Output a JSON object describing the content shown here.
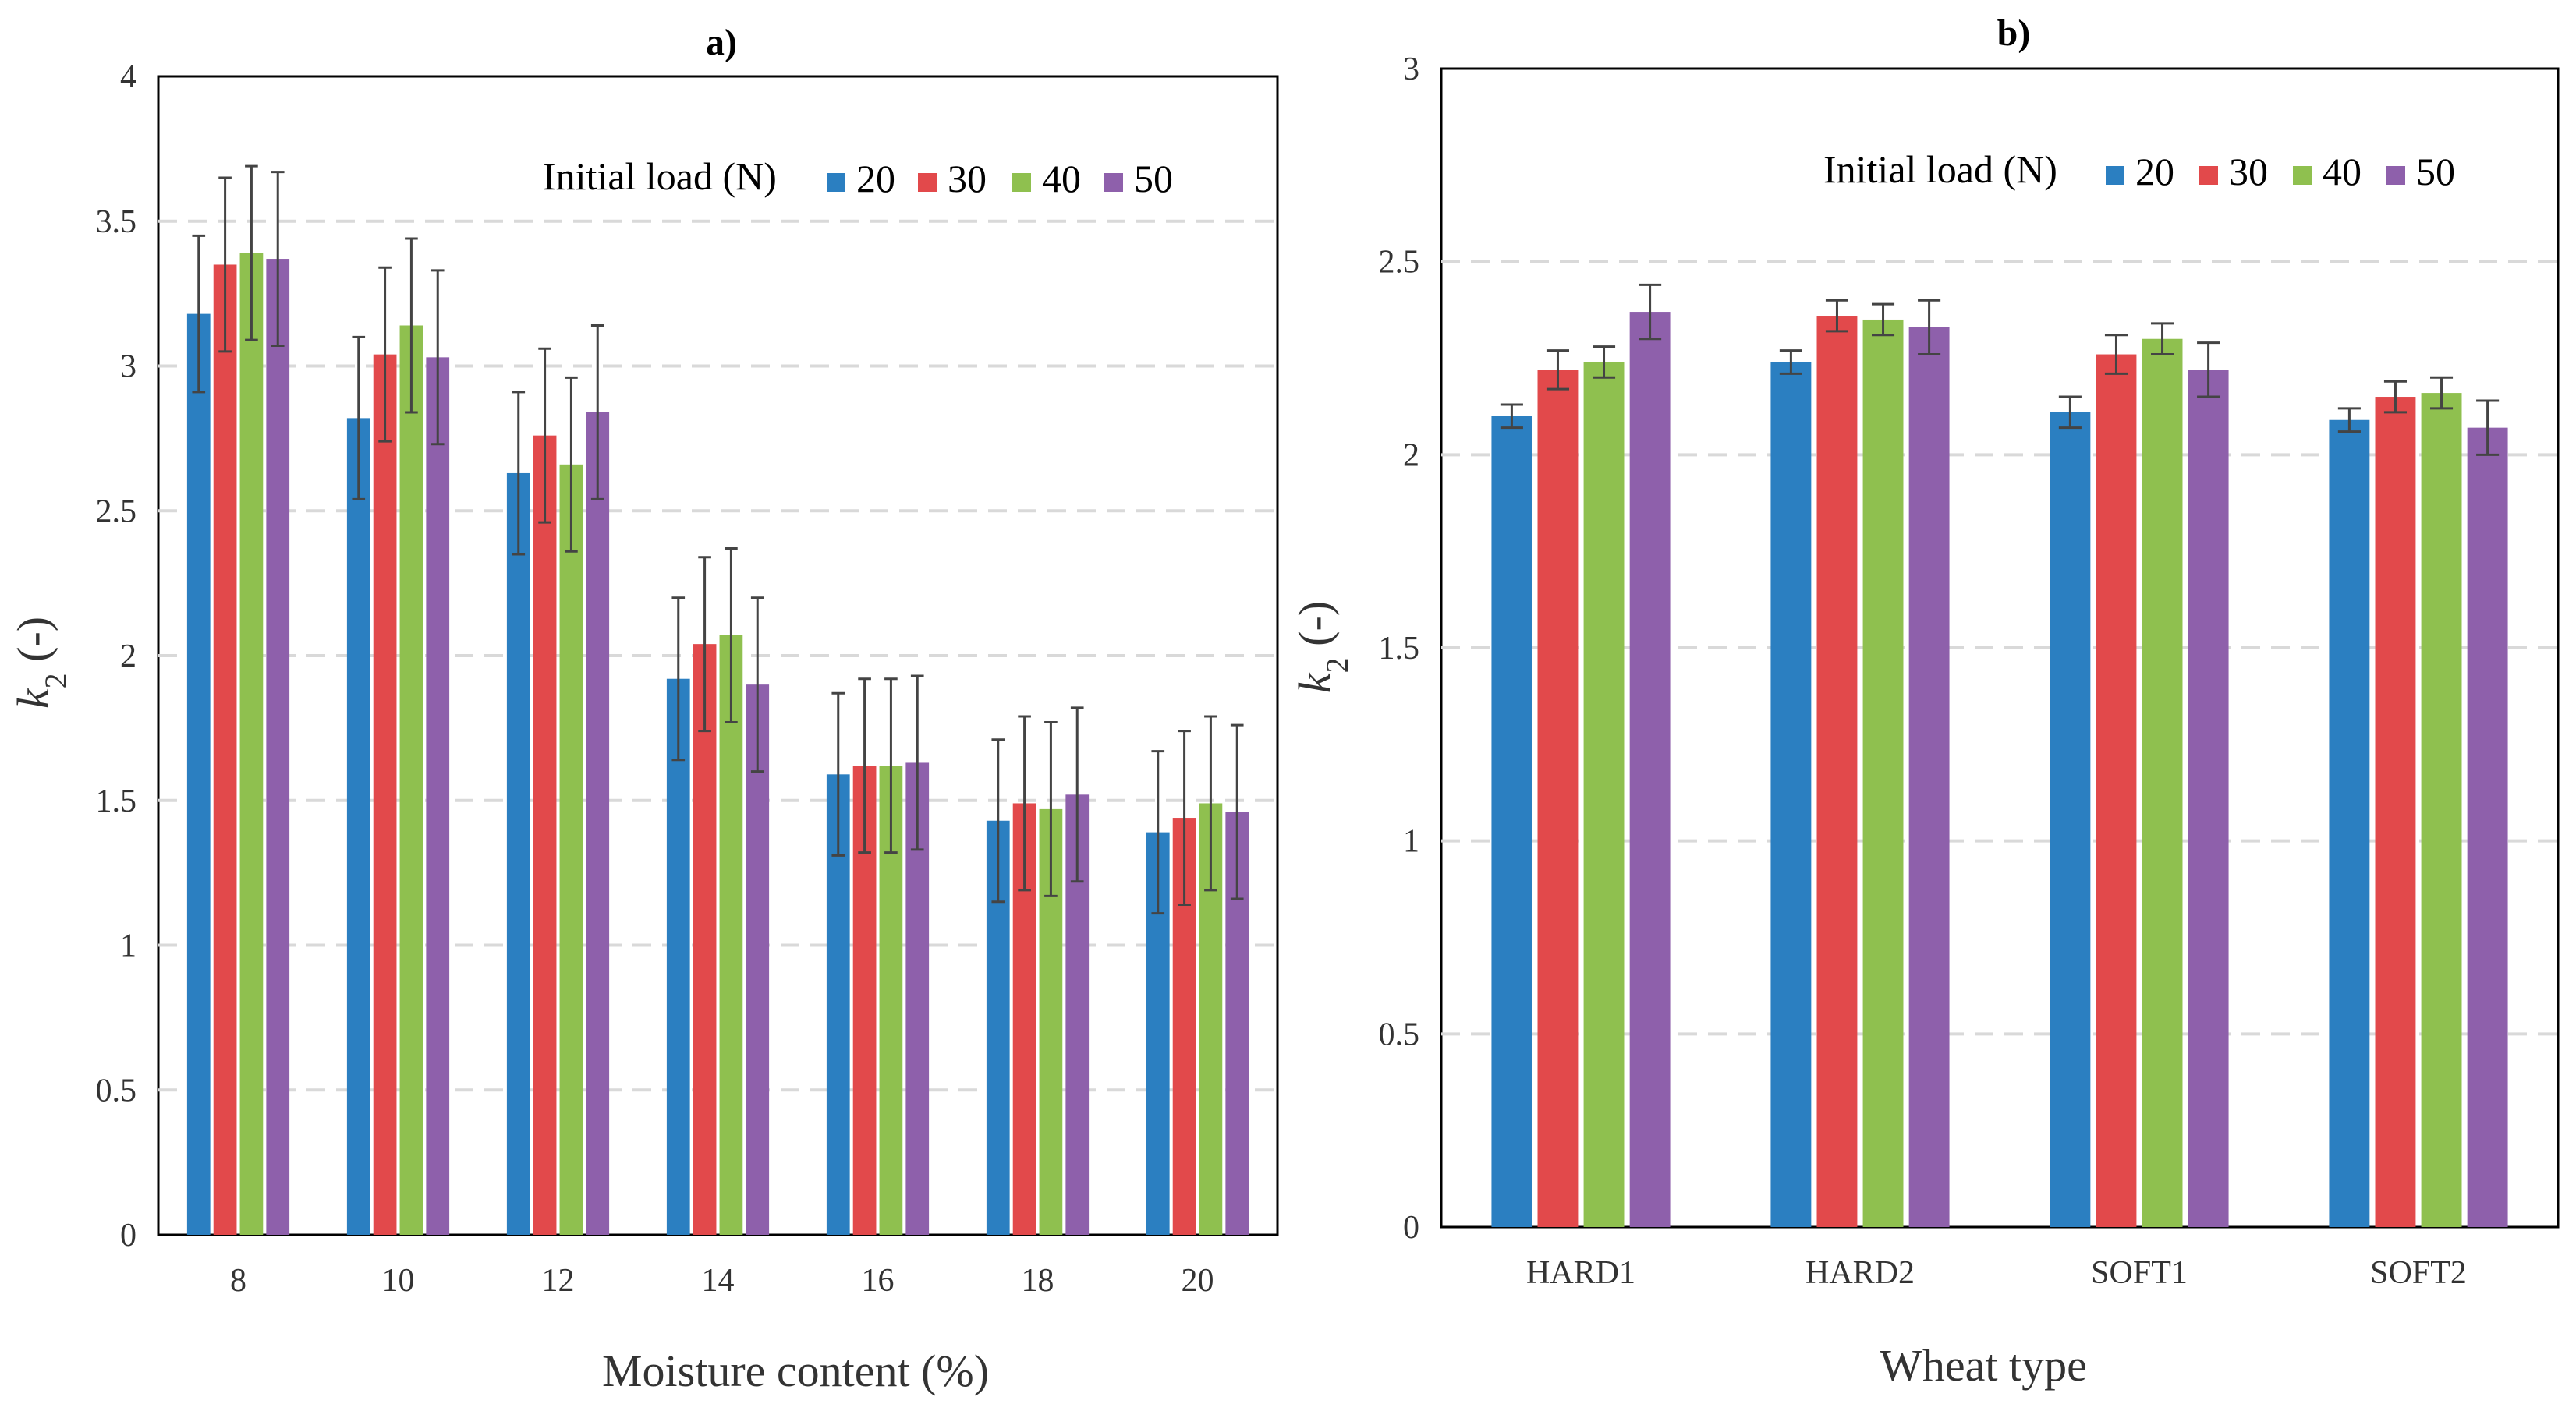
{
  "chart_data": [
    {
      "type": "bar",
      "title": "a)",
      "xlabel": "Moisture content (%)",
      "ylabel": "k2 (-)",
      "ylim": [
        0,
        4
      ],
      "yticks": [
        0,
        0.5,
        1,
        1.5,
        2,
        2.5,
        3,
        3.5,
        4
      ],
      "ytick_labels": [
        "0",
        "0.5",
        "1",
        "1.5",
        "2",
        "2.5",
        "3",
        "3.5",
        "4"
      ],
      "grid": "horizontal dashed",
      "legend_title": "Initial load (N)",
      "legend_position": "top-right",
      "categories": [
        "8",
        "10",
        "12",
        "14",
        "16",
        "18",
        "20"
      ],
      "series": [
        {
          "name": "20",
          "color": "#2b7fc1",
          "values": [
            3.18,
            2.82,
            2.63,
            1.92,
            1.59,
            1.43,
            1.39
          ],
          "errors": [
            0.27,
            0.28,
            0.28,
            0.28,
            0.28,
            0.28,
            0.28
          ]
        },
        {
          "name": "30",
          "color": "#e2494b",
          "values": [
            3.35,
            3.04,
            2.76,
            2.04,
            1.62,
            1.49,
            1.44
          ],
          "errors": [
            0.3,
            0.3,
            0.3,
            0.3,
            0.3,
            0.3,
            0.3
          ]
        },
        {
          "name": "40",
          "color": "#8fc04f",
          "values": [
            3.39,
            3.14,
            2.66,
            2.07,
            1.62,
            1.47,
            1.49
          ],
          "errors": [
            0.3,
            0.3,
            0.3,
            0.3,
            0.3,
            0.3,
            0.3
          ]
        },
        {
          "name": "50",
          "color": "#8e60ab",
          "values": [
            3.37,
            3.03,
            2.84,
            1.9,
            1.63,
            1.52,
            1.46
          ],
          "errors": [
            0.3,
            0.3,
            0.3,
            0.3,
            0.3,
            0.3,
            0.3
          ]
        }
      ]
    },
    {
      "type": "bar",
      "title": "b)",
      "xlabel": "Wheat type",
      "ylabel": "k2 (-)",
      "ylim": [
        0,
        3
      ],
      "yticks": [
        0,
        0.5,
        1,
        1.5,
        2,
        2.5,
        3
      ],
      "ytick_labels": [
        "0",
        "0.5",
        "1",
        "1.5",
        "2",
        "2.5",
        "3"
      ],
      "grid": "horizontal dashed",
      "legend_title": "Initial load (N)",
      "legend_position": "top-right",
      "categories": [
        "HARD1",
        "HARD2",
        "SOFT1",
        "SOFT2"
      ],
      "series": [
        {
          "name": "20",
          "color": "#2b7fc1",
          "values": [
            2.1,
            2.24,
            2.11,
            2.09
          ],
          "errors": [
            0.03,
            0.03,
            0.04,
            0.03
          ]
        },
        {
          "name": "30",
          "color": "#e2494b",
          "values": [
            2.22,
            2.36,
            2.26,
            2.15
          ],
          "errors": [
            0.05,
            0.04,
            0.05,
            0.04
          ]
        },
        {
          "name": "40",
          "color": "#8fc04f",
          "values": [
            2.24,
            2.35,
            2.3,
            2.16
          ],
          "errors": [
            0.04,
            0.04,
            0.04,
            0.04
          ]
        },
        {
          "name": "50",
          "color": "#8e60ab",
          "values": [
            2.37,
            2.33,
            2.22,
            2.07
          ],
          "errors": [
            0.07,
            0.07,
            0.07,
            0.07
          ]
        }
      ]
    }
  ]
}
